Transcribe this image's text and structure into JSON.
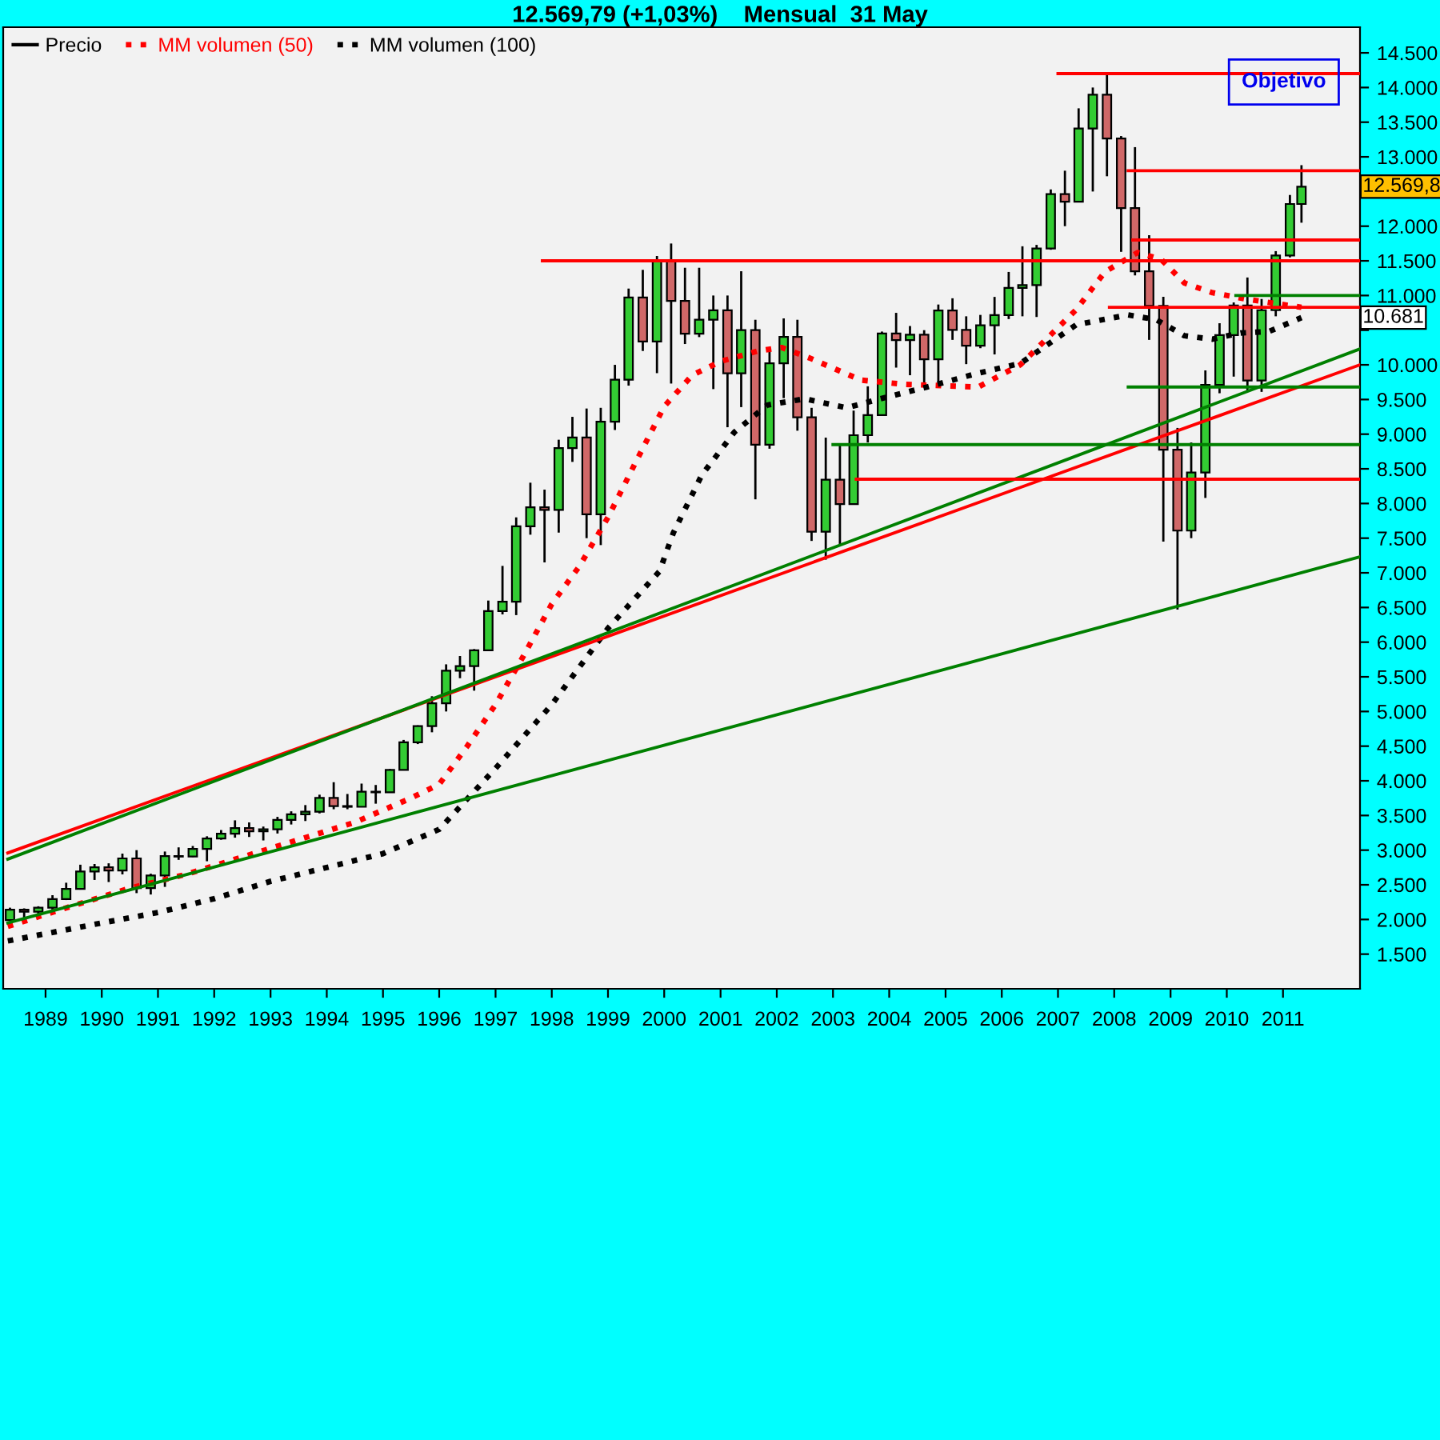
{
  "chart_data": {
    "type": "candlestick",
    "title": "12.569,79 (+1,03%)    Mensual  31 May",
    "xlim": [
      "1988-04-01",
      "2012-05-15"
    ],
    "ylim": [
      1000,
      14870
    ],
    "xticks": [
      {
        "value": "1989-01",
        "label": "1989"
      },
      {
        "value": "1990-01",
        "label": "1990"
      },
      {
        "value": "1991-01",
        "label": "1991"
      },
      {
        "value": "1992-01",
        "label": "1992"
      },
      {
        "value": "1993-01",
        "label": "1993"
      },
      {
        "value": "1994-01",
        "label": "1994"
      },
      {
        "value": "1995-01",
        "label": "1995"
      },
      {
        "value": "1996-01",
        "label": "1996"
      },
      {
        "value": "1997-01",
        "label": "1997"
      },
      {
        "value": "1998-01",
        "label": "1998"
      },
      {
        "value": "1999-01",
        "label": "1999"
      },
      {
        "value": "2000-01",
        "label": "2000"
      },
      {
        "value": "2001-01",
        "label": "2001"
      },
      {
        "value": "2002-01",
        "label": "2002"
      },
      {
        "value": "2003-01",
        "label": "2003"
      },
      {
        "value": "2004-01",
        "label": "2004"
      },
      {
        "value": "2005-01",
        "label": "2005"
      },
      {
        "value": "2006-01",
        "label": "2006"
      },
      {
        "value": "2007-01",
        "label": "2007"
      },
      {
        "value": "2008-01",
        "label": "2008"
      },
      {
        "value": "2009-01",
        "label": "2009"
      },
      {
        "value": "2010-01",
        "label": "2010"
      },
      {
        "value": "2011-01",
        "label": "2011"
      }
    ],
    "yticks": [
      {
        "value": 1500,
        "label": "1.500"
      },
      {
        "value": 2000,
        "label": "2.000"
      },
      {
        "value": 2500,
        "label": "2.500"
      },
      {
        "value": 3000,
        "label": "3.000"
      },
      {
        "value": 3500,
        "label": "3.500"
      },
      {
        "value": 4000,
        "label": "4.000"
      },
      {
        "value": 4500,
        "label": "4.500"
      },
      {
        "value": 5000,
        "label": "5.000"
      },
      {
        "value": 5500,
        "label": "5.500"
      },
      {
        "value": 6000,
        "label": "6.000"
      },
      {
        "value": 6500,
        "label": "6.500"
      },
      {
        "value": 7000,
        "label": "7.000"
      },
      {
        "value": 7500,
        "label": "7.500"
      },
      {
        "value": 8000,
        "label": "8.000"
      },
      {
        "value": 8500,
        "label": "8.500"
      },
      {
        "value": 9000,
        "label": "9.000"
      },
      {
        "value": 9500,
        "label": "9.500"
      },
      {
        "value": 10000,
        "label": "10.000"
      },
      {
        "value": 10500,
        "label": null
      },
      {
        "value": 11000,
        "label": "11.000"
      },
      {
        "value": 11500,
        "label": "11.500"
      },
      {
        "value": 12000,
        "label": "12.000"
      },
      {
        "value": 12500,
        "label": null
      },
      {
        "value": 13000,
        "label": "13.000"
      },
      {
        "value": 13500,
        "label": "13.500"
      },
      {
        "value": 14000,
        "label": "14.000"
      },
      {
        "value": 14500,
        "label": "14.500"
      }
    ],
    "grid": false,
    "legend": "top left",
    "series": [
      {
        "name": "Precio",
        "x": [
          "1988-05-15",
          "1988-08-15",
          "1988-11-15",
          "1989-02-15",
          "1989-05-15",
          "1989-08-15",
          "1989-11-15",
          "1990-02-15",
          "1990-05-15",
          "1990-08-15",
          "1990-11-15",
          "1991-02-15",
          "1991-05-15",
          "1991-08-15",
          "1991-11-15",
          "1992-02-15",
          "1992-05-15",
          "1992-08-15",
          "1992-11-15",
          "1993-02-15",
          "1993-05-15",
          "1993-08-15",
          "1993-11-15",
          "1994-02-15",
          "1994-05-15",
          "1994-08-15",
          "1994-11-15",
          "1995-02-15",
          "1995-05-15",
          "1995-08-15",
          "1995-11-15",
          "1996-02-15",
          "1996-05-15",
          "1996-08-15",
          "1996-11-15",
          "1997-02-15",
          "1997-05-15",
          "1997-08-15",
          "1997-11-15",
          "1998-02-15",
          "1998-05-15",
          "1998-08-15",
          "1998-11-15",
          "1999-02-15",
          "1999-05-15",
          "1999-08-15",
          "1999-11-15",
          "2000-02-15",
          "2000-05-15",
          "2000-08-15",
          "2000-11-15",
          "2001-02-15",
          "2001-05-15",
          "2001-08-15",
          "2001-11-15",
          "2002-02-15",
          "2002-05-15",
          "2002-08-15",
          "2002-11-15",
          "2003-02-15",
          "2003-05-15",
          "2003-08-15",
          "2003-11-15",
          "2004-02-15",
          "2004-05-15",
          "2004-08-15",
          "2004-11-15",
          "2005-02-15",
          "2005-05-15",
          "2005-08-15",
          "2005-11-15",
          "2006-02-15",
          "2006-05-15",
          "2006-08-15",
          "2006-11-15",
          "2007-02-15",
          "2007-05-15",
          "2007-08-15",
          "2007-11-15",
          "2008-02-15",
          "2008-05-15",
          "2008-08-15",
          "2008-11-15",
          "2009-02-15",
          "2009-05-15",
          "2009-08-15",
          "2009-11-15",
          "2010-02-15",
          "2010-05-15",
          "2010-08-15",
          "2010-11-15",
          "2011-02-15",
          "2011-05-01"
        ],
        "ohlc": [
          [
            1990,
            2170,
            1980,
            2140
          ],
          [
            2140,
            2160,
            2000,
            2112
          ],
          [
            2112,
            2190,
            2040,
            2169
          ],
          [
            2169,
            2350,
            2140,
            2293
          ],
          [
            2293,
            2530,
            2280,
            2440
          ],
          [
            2440,
            2790,
            2430,
            2693
          ],
          [
            2693,
            2800,
            2570,
            2753
          ],
          [
            2753,
            2810,
            2540,
            2707
          ],
          [
            2707,
            2950,
            2650,
            2881
          ],
          [
            2881,
            3000,
            2380,
            2453
          ],
          [
            2453,
            2660,
            2360,
            2634
          ],
          [
            2634,
            2980,
            2470,
            2914
          ],
          [
            2914,
            3040,
            2860,
            2907
          ],
          [
            2907,
            3060,
            2900,
            3017
          ],
          [
            3017,
            3200,
            2840,
            3169
          ],
          [
            3169,
            3290,
            3150,
            3236
          ],
          [
            3236,
            3430,
            3180,
            3319
          ],
          [
            3319,
            3400,
            3190,
            3272
          ],
          [
            3272,
            3340,
            3140,
            3301
          ],
          [
            3301,
            3480,
            3240,
            3435
          ],
          [
            3435,
            3560,
            3370,
            3516
          ],
          [
            3516,
            3650,
            3420,
            3555
          ],
          [
            3555,
            3800,
            3530,
            3754
          ],
          [
            3754,
            3980,
            3590,
            3636
          ],
          [
            3636,
            3810,
            3590,
            3625
          ],
          [
            3625,
            3960,
            3620,
            3843
          ],
          [
            3843,
            3940,
            3670,
            3834
          ],
          [
            3834,
            4170,
            3830,
            4158
          ],
          [
            4158,
            4590,
            4150,
            4556
          ],
          [
            4556,
            4800,
            4530,
            4789
          ],
          [
            4789,
            5220,
            4700,
            5117
          ],
          [
            5117,
            5680,
            5000,
            5587
          ],
          [
            5587,
            5800,
            5480,
            5654
          ],
          [
            5654,
            5900,
            5300,
            5882
          ],
          [
            5882,
            6600,
            5880,
            6448
          ],
          [
            6448,
            7100,
            6400,
            6583
          ],
          [
            6583,
            7800,
            6390,
            7672
          ],
          [
            7672,
            8300,
            7550,
            7945
          ],
          [
            7945,
            8200,
            7150,
            7908
          ],
          [
            7908,
            8920,
            7580,
            8799
          ],
          [
            8799,
            9250,
            8600,
            8952
          ],
          [
            8952,
            9370,
            7500,
            7843
          ],
          [
            7843,
            9380,
            7400,
            9181
          ],
          [
            9181,
            10000,
            9060,
            9786
          ],
          [
            9786,
            11100,
            9700,
            10971
          ],
          [
            10971,
            11370,
            10200,
            10337
          ],
          [
            10337,
            11570,
            9880,
            11497
          ],
          [
            11497,
            11750,
            9730,
            10922
          ],
          [
            10922,
            11400,
            10300,
            10448
          ],
          [
            10448,
            11400,
            10400,
            10651
          ],
          [
            10651,
            11000,
            9650,
            10787
          ],
          [
            10787,
            11000,
            9100,
            9879
          ],
          [
            9879,
            11350,
            9390,
            10502
          ],
          [
            10502,
            10650,
            8060,
            8848
          ],
          [
            8848,
            10190,
            8790,
            10021
          ],
          [
            10021,
            10670,
            9520,
            10404
          ],
          [
            10404,
            10650,
            9050,
            9243
          ],
          [
            9243,
            9380,
            7460,
            7592
          ],
          [
            7592,
            8950,
            7190,
            8342
          ],
          [
            8342,
            8870,
            7410,
            7992
          ],
          [
            7992,
            9340,
            7990,
            8985
          ],
          [
            8985,
            9690,
            8880,
            9275
          ],
          [
            9275,
            10480,
            9270,
            10453
          ],
          [
            10453,
            10750,
            9960,
            10357
          ],
          [
            10357,
            10560,
            9850,
            10435
          ],
          [
            10435,
            10500,
            9700,
            10080
          ],
          [
            10080,
            10870,
            9750,
            10783
          ],
          [
            10783,
            10960,
            10360,
            10504
          ],
          [
            10504,
            10700,
            10010,
            10275
          ],
          [
            10275,
            10720,
            10240,
            10569
          ],
          [
            10569,
            10980,
            10150,
            10718
          ],
          [
            10718,
            11340,
            10660,
            11109
          ],
          [
            11109,
            11710,
            10700,
            11150
          ],
          [
            11150,
            11730,
            10690,
            11679
          ],
          [
            11679,
            12530,
            11660,
            12463
          ],
          [
            12463,
            12800,
            12000,
            12354
          ],
          [
            12354,
            13700,
            12350,
            13409
          ],
          [
            13409,
            14000,
            12500,
            13896
          ],
          [
            13896,
            14200,
            12720,
            13264
          ],
          [
            13264,
            13300,
            11630,
            12262
          ],
          [
            12262,
            13140,
            11290,
            11350
          ],
          [
            11350,
            11870,
            10360,
            10850
          ],
          [
            10850,
            10980,
            7450,
            8776
          ],
          [
            8776,
            9090,
            6470,
            7609
          ],
          [
            7609,
            8880,
            7500,
            8447
          ],
          [
            8447,
            9920,
            8080,
            9712
          ],
          [
            9712,
            10600,
            9590,
            10428
          ],
          [
            10428,
            10900,
            9830,
            10857
          ],
          [
            10857,
            11260,
            9610,
            9774
          ],
          [
            9774,
            10950,
            9610,
            10788
          ],
          [
            10788,
            11640,
            10700,
            11577
          ],
          [
            11577,
            12450,
            11550,
            12320
          ],
          [
            12320,
            12880,
            12050,
            12570
          ]
        ]
      },
      {
        "type": "line",
        "name": "MM volumen (50)",
        "color": "#ff0000",
        "line_style": "dotted",
        "x": [
          "1988-05",
          "1989-07",
          "1990-07",
          "1991-07",
          "1992-07",
          "1993-07",
          "1994-07",
          "1995-07",
          "1996-01",
          "1996-07",
          "1997-01",
          "1997-07",
          "1998-01",
          "1998-07",
          "1999-01",
          "1999-07",
          "2000-01",
          "2000-07",
          "2001-01",
          "2001-09",
          "2002-02",
          "2002-08",
          "2003-07",
          "2004-04",
          "2005-08",
          "2006-05",
          "2007-05",
          "2007-11",
          "2008-06",
          "2008-11",
          "2009-04",
          "2009-10",
          "2010-05",
          "2011-05"
        ],
        "values": [
          1900,
          2200,
          2450,
          2650,
          2900,
          3150,
          3400,
          3750,
          3950,
          4500,
          5100,
          5800,
          6550,
          7100,
          7800,
          8600,
          9400,
          9850,
          10050,
          10200,
          10250,
          10100,
          9780,
          9720,
          9680,
          10000,
          10800,
          11340,
          11620,
          11520,
          11180,
          11040,
          10950,
          10830
        ]
      },
      {
        "type": "line",
        "name": "MM volumen (100)",
        "color": "#000000",
        "line_style": "dotted",
        "x": [
          "1988-05",
          "1990-01",
          "1991-01",
          "1992-01",
          "1993-01",
          "1994-01",
          "1995-01",
          "1996-01",
          "1997-01",
          "1998-01",
          "1999-01",
          "1999-12",
          "2000-03",
          "2000-09",
          "2001-04",
          "2001-11",
          "2002-07",
          "2003-04",
          "2003-10",
          "2004-09",
          "2005-08",
          "2006-05",
          "2007-05",
          "2008-04",
          "2008-10",
          "2009-04",
          "2009-10",
          "2010-04",
          "2010-10",
          "2011-05"
        ],
        "values": [
          1690,
          1950,
          2100,
          2300,
          2550,
          2750,
          2950,
          3300,
          4180,
          5100,
          6200,
          7020,
          7580,
          8410,
          9030,
          9420,
          9510,
          9380,
          9490,
          9680,
          9880,
          10020,
          10580,
          10720,
          10650,
          10420,
          10370,
          10460,
          10480,
          10681
        ]
      },
      {
        "type": "line",
        "color": "#008000",
        "x": [
          "1988-05",
          "2012-05-15"
        ],
        "values": [
          1950,
          7230
        ]
      },
      {
        "type": "line",
        "color": "#ff0000",
        "x": [
          "1988-05",
          "2012-05-15"
        ],
        "values": [
          2960,
          10000
        ]
      },
      {
        "type": "line",
        "color": "#008000",
        "x": [
          "1988-05",
          "2012-05-15"
        ],
        "values": [
          2870,
          10230
        ]
      },
      {
        "type": "line",
        "color": "#ff0000",
        "x": [
          "2007-01",
          "2012-05-15"
        ],
        "values": [
          14200,
          14200
        ]
      },
      {
        "type": "line",
        "color": "#ff0000",
        "x": [
          "2008-04",
          "2012-05-15"
        ],
        "values": [
          12800,
          12800
        ]
      },
      {
        "type": "line",
        "color": "#ff0000",
        "x": [
          "2008-05",
          "2012-05-15"
        ],
        "values": [
          11800,
          11800
        ]
      },
      {
        "type": "line",
        "color": "#ff0000",
        "x": [
          "1997-11",
          "2012-05-15"
        ],
        "values": [
          11500,
          11500
        ]
      },
      {
        "type": "line",
        "color": "#008000",
        "x": [
          "2010-03",
          "2012-05-15"
        ],
        "values": [
          11000,
          11000
        ]
      },
      {
        "type": "line",
        "color": "#ff0000",
        "x": [
          "2007-12",
          "2012-05-15"
        ],
        "values": [
          10830,
          10830
        ]
      },
      {
        "type": "line",
        "color": "#008000",
        "x": [
          "2008-04",
          "2012-05-15"
        ],
        "values": [
          9680,
          9680
        ]
      },
      {
        "type": "line",
        "color": "#008000",
        "x": [
          "2003-01",
          "2012-05-15"
        ],
        "values": [
          8850,
          8850
        ]
      },
      {
        "type": "line",
        "color": "#ff0000",
        "x": [
          "2003-06",
          "2012-05-15"
        ],
        "values": [
          8350,
          8350
        ]
      }
    ],
    "annotations": [
      "Objetivo",
      "12.569,8",
      "10.681"
    ]
  }
}
